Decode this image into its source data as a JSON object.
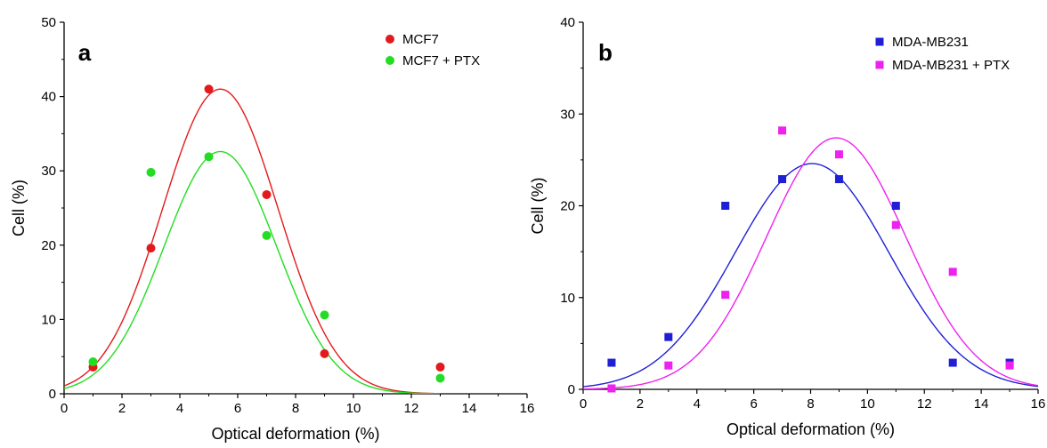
{
  "chart_data": [
    {
      "type": "scatter",
      "panel_label": "a",
      "xlabel": "Optical deformation (%)",
      "ylabel": "Cell (%)",
      "xlim": [
        0,
        16
      ],
      "ylim": [
        0,
        50
      ],
      "x_ticks": [
        "0",
        "2",
        "4",
        "6",
        "8",
        "10",
        "12",
        "14",
        "16"
      ],
      "y_ticks": [
        "0",
        "10",
        "20",
        "30",
        "40",
        "50"
      ],
      "legend_position": "top-right",
      "grid": false,
      "marker": "circle",
      "series": [
        {
          "name": "MCF7",
          "color": "#e31a1c",
          "points": [
            [
              1,
              3.6
            ],
            [
              3,
              19.6
            ],
            [
              5,
              41.0
            ],
            [
              7,
              26.8
            ],
            [
              9,
              5.4
            ],
            [
              13,
              3.6
            ]
          ],
          "fit": {
            "A": 41,
            "mu": 5.4,
            "sigma": 2.0,
            "xmin": 0,
            "xmax": 13
          }
        },
        {
          "name": "MCF7 + PTX",
          "color": "#22dd22",
          "points": [
            [
              1,
              4.3
            ],
            [
              3,
              29.8
            ],
            [
              5,
              31.9
            ],
            [
              7,
              21.3
            ],
            [
              9,
              10.6
            ],
            [
              13,
              2.1
            ]
          ],
          "fit": {
            "A": 32.6,
            "mu": 5.4,
            "sigma": 1.95,
            "xmin": 0,
            "xmax": 13
          }
        }
      ]
    },
    {
      "type": "scatter",
      "panel_label": "b",
      "xlabel": "Optical deformation (%)",
      "ylabel": "Cell (%)",
      "xlim": [
        0,
        16
      ],
      "ylim": [
        0,
        40
      ],
      "x_ticks": [
        "0",
        "2",
        "4",
        "6",
        "8",
        "10",
        "12",
        "14",
        "16"
      ],
      "y_ticks": [
        "0",
        "10",
        "20",
        "30",
        "40"
      ],
      "legend_position": "top-right",
      "grid": false,
      "marker": "square",
      "series": [
        {
          "name": "MDA-MB231",
          "color": "#1f1fd6",
          "points": [
            [
              1,
              2.9
            ],
            [
              3,
              5.7
            ],
            [
              5,
              20.0
            ],
            [
              7,
              22.9
            ],
            [
              9,
              22.9
            ],
            [
              11,
              20.0
            ],
            [
              13,
              2.9
            ],
            [
              15,
              2.9
            ]
          ],
          "fit": {
            "A": 24.6,
            "mu": 8.05,
            "sigma": 2.7,
            "xmin": 0,
            "xmax": 16
          }
        },
        {
          "name": "MDA-MB231 + PTX",
          "color": "#ee22ee",
          "points": [
            [
              1,
              0.1
            ],
            [
              3,
              2.6
            ],
            [
              5,
              10.3
            ],
            [
              7,
              28.2
            ],
            [
              9,
              25.6
            ],
            [
              11,
              17.9
            ],
            [
              13,
              12.8
            ],
            [
              15,
              2.6
            ]
          ],
          "fit": {
            "A": 27.4,
            "mu": 8.9,
            "sigma": 2.45,
            "xmin": 0,
            "xmax": 16
          }
        }
      ]
    }
  ]
}
